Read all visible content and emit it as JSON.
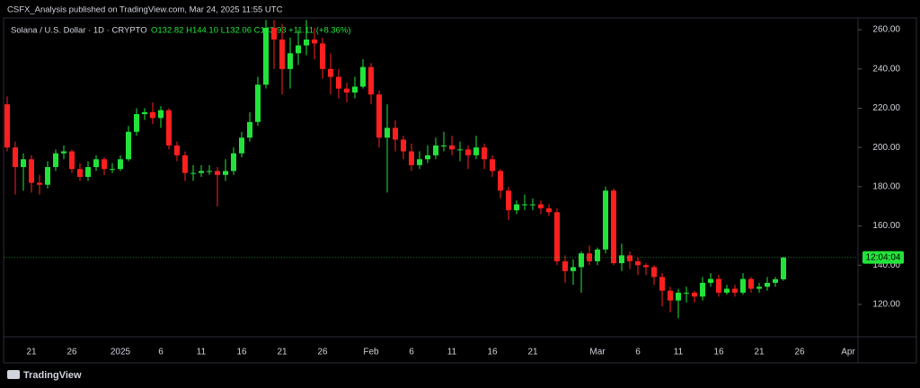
{
  "chart_data": {
    "type": "candlestick",
    "annotation": "CSFX_Analysis published on TradingView.com, Mar 24, 2025 11:55 UTC",
    "title": "Solana / U.S. Dollar · 1D · CRYPTO",
    "subtitle": "O132.82 H144.10 L132.06 C143.93 +11.11 (+8.36%)",
    "countdown": "12:04:04",
    "footer": "TradingView",
    "up_color": "#22e33a",
    "down_color": "#ff1f1f",
    "grid": false,
    "categories": [
      null,
      null,
      null,
      "21",
      null,
      null,
      null,
      null,
      "26",
      null,
      null,
      null,
      null,
      null,
      "2025",
      null,
      null,
      null,
      null,
      "6",
      null,
      null,
      null,
      null,
      "11",
      null,
      null,
      null,
      null,
      "16",
      null,
      null,
      null,
      null,
      "21",
      null,
      null,
      null,
      null,
      "26",
      null,
      null,
      null,
      null,
      null,
      "Feb",
      null,
      null,
      null,
      null,
      "6",
      null,
      null,
      null,
      null,
      "11",
      null,
      null,
      null,
      null,
      "16",
      null,
      null,
      null,
      null,
      "21",
      null,
      null,
      null,
      null,
      null,
      null,
      null,
      "Mar",
      null,
      null,
      null,
      null,
      "6",
      null,
      null,
      null,
      null,
      "11",
      null,
      null,
      null,
      null,
      "16",
      null,
      null,
      null,
      null,
      "21",
      null,
      null,
      null,
      null,
      "26",
      null,
      null,
      null,
      null,
      null,
      "Apr"
    ],
    "open": [
      222,
      200,
      190,
      194,
      182,
      181,
      190,
      197,
      198,
      189,
      185,
      190,
      194,
      189,
      189,
      194,
      208,
      217,
      218,
      215,
      219,
      201,
      196,
      187,
      187,
      188,
      188,
      186,
      188,
      197,
      205,
      213,
      232,
      261,
      255,
      240,
      248,
      252,
      255,
      253,
      240,
      236,
      230,
      228,
      231,
      241,
      227,
      205,
      210,
      204,
      198,
      191,
      194,
      196,
      201,
      201,
      199,
      199,
      196,
      200,
      194,
      188,
      178,
      168,
      171,
      171,
      171,
      169,
      167,
      142,
      137,
      139,
      146,
      142,
      148,
      178,
      141,
      145,
      142,
      140,
      139,
      134,
      127,
      122,
      126,
      126,
      124,
      131,
      133,
      126,
      128,
      126,
      133,
      128,
      129,
      131,
      132.82,
      null,
      null,
      null,
      null,
      null,
      null,
      null,
      null
    ],
    "high": [
      226,
      203,
      197,
      196,
      186,
      193,
      199,
      201,
      199,
      192,
      193,
      196,
      195,
      192,
      196,
      211,
      220,
      220,
      223,
      221,
      220,
      203,
      198,
      191,
      191,
      191,
      190,
      194,
      200,
      208,
      218,
      236,
      265,
      265,
      263,
      256,
      260,
      265,
      261,
      256,
      248,
      240,
      233,
      236,
      245,
      243,
      229,
      222,
      214,
      206,
      202,
      198,
      201,
      205,
      208,
      206,
      203,
      201,
      206,
      202,
      196,
      189,
      180,
      173,
      176,
      174,
      173,
      171,
      169,
      145,
      143,
      147,
      150,
      149,
      180,
      179,
      151,
      147,
      144,
      141,
      140,
      136,
      129,
      128,
      129,
      127,
      134,
      136,
      135,
      130,
      130,
      136,
      134,
      131,
      134,
      134,
      144.1,
      null,
      null,
      null,
      null,
      null,
      null,
      null,
      null
    ],
    "low": [
      198,
      176,
      178,
      177,
      176,
      179,
      188,
      194,
      187,
      183,
      183,
      188,
      186,
      187,
      188,
      193,
      206,
      214,
      212,
      210,
      199,
      193,
      183,
      183,
      185,
      186,
      170,
      183,
      186,
      195,
      203,
      211,
      230,
      240,
      227,
      230,
      242,
      247,
      245,
      235,
      227,
      225,
      223,
      225,
      230,
      222,
      200,
      177,
      198,
      194,
      188,
      189,
      192,
      194,
      198,
      196,
      193,
      189,
      194,
      189,
      185,
      174,
      163,
      166,
      168,
      168,
      166,
      165,
      140,
      131,
      130,
      126,
      140,
      140,
      146,
      140,
      137,
      138,
      135,
      135,
      130,
      119,
      116,
      113,
      121,
      121,
      122,
      129,
      124,
      125,
      124,
      125,
      126,
      126,
      127,
      129,
      132.06,
      null,
      null,
      null,
      null,
      null,
      null,
      null,
      null
    ],
    "close": [
      200,
      190,
      194,
      182,
      181,
      190,
      197,
      198,
      189,
      185,
      190,
      194,
      189,
      189,
      194,
      208,
      217,
      218,
      215,
      219,
      201,
      196,
      187,
      187,
      188,
      188,
      186,
      188,
      197,
      205,
      213,
      232,
      261,
      255,
      240,
      248,
      252,
      255,
      253,
      240,
      236,
      230,
      228,
      231,
      241,
      227,
      205,
      210,
      204,
      198,
      191,
      194,
      196,
      201,
      201,
      199,
      199,
      196,
      200,
      194,
      188,
      178,
      168,
      171,
      171,
      171,
      169,
      167,
      142,
      137,
      139,
      146,
      142,
      148,
      178,
      141,
      145,
      142,
      140,
      139,
      134,
      127,
      122,
      126,
      126,
      124,
      131,
      133,
      126,
      128,
      126,
      133,
      128,
      129,
      131,
      132.82,
      143.93,
      null,
      null,
      null,
      null,
      null,
      null,
      null,
      null
    ],
    "ylim": [
      103.5,
      266
    ],
    "yticks": [
      {
        "value": 120,
        "label": "120.00"
      },
      {
        "value": 140,
        "label": "140.00"
      },
      {
        "value": 160,
        "label": "160.00"
      },
      {
        "value": 180,
        "label": "180.00"
      },
      {
        "value": 200,
        "label": "200.00"
      },
      {
        "value": 220,
        "label": "220.00"
      },
      {
        "value": 240,
        "label": "240.00"
      },
      {
        "value": 260,
        "label": "260.00"
      }
    ]
  }
}
